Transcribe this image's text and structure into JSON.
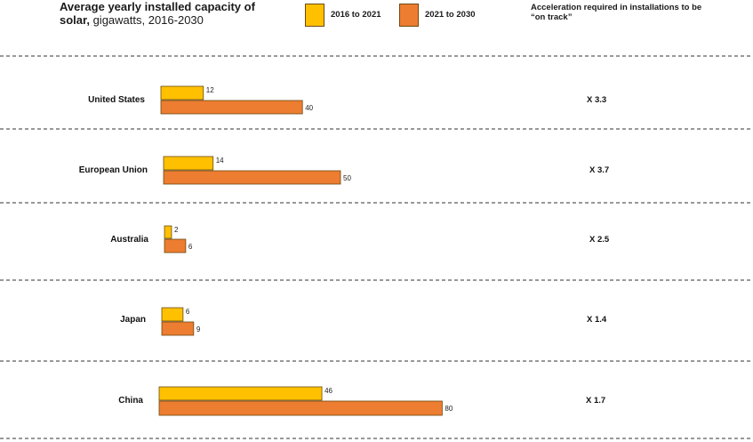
{
  "header": {
    "title_bold": "Average yearly installed capacity of solar,",
    "title_rest": " gigawatts, 2016-2030",
    "accel_heading": "Acceleration required in installations to be “on track”"
  },
  "colors": {
    "series_2016_2021": "#FFC000",
    "series_2021_2030": "#ED7D31",
    "bar_stroke": "#6b4a10",
    "divider": "#333333"
  },
  "chart_data": {
    "type": "bar",
    "orientation": "horizontal",
    "title": "Average yearly installed capacity of solar, gigawatts, 2016-2030",
    "categories": [
      "United States",
      "European Union",
      "Australia",
      "Japan",
      "China"
    ],
    "series": [
      {
        "name": "2016 to 2021",
        "values": [
          12,
          14,
          2,
          6,
          46
        ]
      },
      {
        "name": "2021 to 2030",
        "values": [
          40,
          50,
          6,
          9,
          80
        ]
      }
    ],
    "acceleration": [
      "X 3.3",
      "X 3.7",
      "X 2.5",
      "X 1.4",
      "X 1.7"
    ],
    "grid": false,
    "legend_position": "top"
  }
}
